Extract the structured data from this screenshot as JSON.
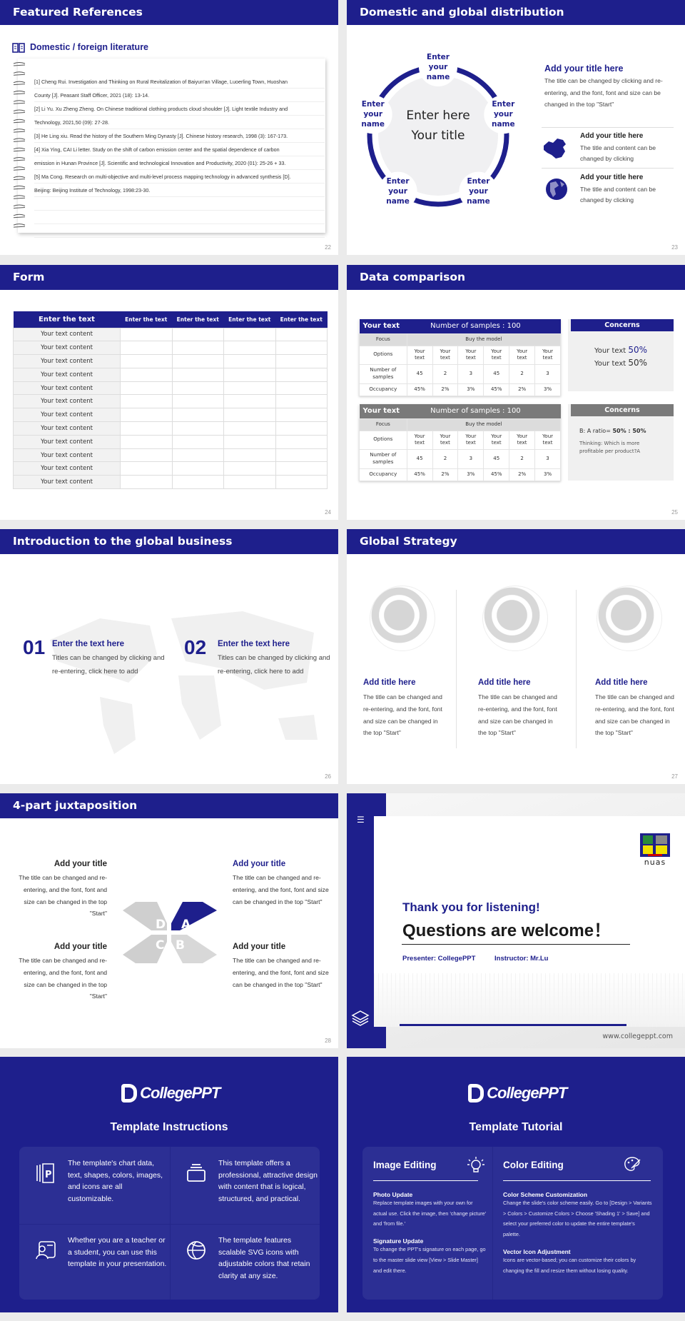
{
  "colors": {
    "primary": "#1e1f8c",
    "gray_header": "#7a7a7a",
    "background": "#ebebeb"
  },
  "slides": [
    {
      "number": "22",
      "title": "Featured References",
      "subtitle": "Domestic / foreign literature",
      "icon": "book-icon",
      "lines": [
        "[1] Cheng Rui. Investigation and Thinking on Rural Revitalization of Baiyun'an Village, Luoerling Town, Huoshan",
        "County [J]. Peasant Staff Officer, 2021 (18): 13-14.",
        "[2] Li Yu. Xu Zheng Zheng. On Chinese traditional clothing products cloud shoulder [J]. Light textile Industry and",
        "Technology, 2021,50 (09): 27-28.",
        "[3] He Ling xiu. Read the history of the Southern Ming Dynasty [J]. Chinese history research, 1998 (3): 167-173.",
        "[4] Xia Ying, CAI Li letter. Study on the shift of carbon emission center and the spatial dependence of carbon",
        "emission in Hunan Province [J]. Scientific and technological Innovation and Productivity, 2020 (01): 25-26 + 33.",
        "[5] Ma Cong. Research on multi-objective and multi-level process mapping technology in advanced synthesis [D].",
        "Beijing: Beijing Institute of Technology, 1998:23-30.",
        "",
        "",
        ""
      ]
    },
    {
      "number": "23",
      "title": "Domestic and global distribution",
      "center": [
        "Enter here",
        "Your title"
      ],
      "labels": [
        "Enter\nyour\nname",
        "Enter\nyour\nname",
        "Enter\nyour\nname",
        "Enter\nyour\nname",
        "Enter\nyour\nname"
      ],
      "main_title": "Add your title here",
      "main_body": "The title can be changed by clicking and re-entering, and the font, font and size can be changed in the top \"Start\"",
      "items": [
        {
          "icon": "china-map-icon",
          "title": "Add your title here",
          "body": "The title and content can be changed by clicking"
        },
        {
          "icon": "globe-icon",
          "title": "Add your title here",
          "body": "The title and content can be changed by clicking"
        }
      ]
    },
    {
      "number": "24",
      "title": "Form",
      "headers": [
        "Enter the text",
        "Enter the text",
        "Enter the text",
        "Enter the text",
        "Enter the text"
      ],
      "rows": [
        "Your text content",
        "Your text content",
        "Your text content",
        "Your text content",
        "Your text content",
        "Your text content",
        "Your text content",
        "Your text content",
        "Your text content",
        "Your text content",
        "Your text content",
        "Your text content"
      ]
    },
    {
      "number": "25",
      "title": "Data comparison",
      "tables": [
        {
          "label": "Your text",
          "samples": "Number of samples : 100",
          "focus": "Focus",
          "buy": "Buy the model",
          "row_labels": [
            "Options",
            "Number of samples",
            "Occupancy"
          ],
          "options": [
            "Your text",
            "Your text",
            "Your text",
            "Your text",
            "Your text",
            "Your text"
          ],
          "numbers": [
            "45",
            "2",
            "3",
            "45",
            "2",
            "3"
          ],
          "occupancy": [
            "45%",
            "2%",
            "3%",
            "45%",
            "2%",
            "3%"
          ]
        },
        {
          "label": "Your text",
          "samples": "Number of samples : 100",
          "focus": "Focus",
          "buy": "Buy the model",
          "row_labels": [
            "Options",
            "Number of samples",
            "Occupancy"
          ],
          "options": [
            "Your text",
            "Your text",
            "Your text",
            "Your text",
            "Your text",
            "Your text"
          ],
          "numbers": [
            "45",
            "2",
            "3",
            "45",
            "2",
            "3"
          ],
          "occupancy": [
            "45%",
            "2%",
            "3%",
            "45%",
            "2%",
            "3%"
          ]
        }
      ],
      "concerns": [
        {
          "title": "Concerns",
          "lines": [
            {
              "text": "Your text ",
              "value": "50%"
            },
            {
              "text": "Your text ",
              "value": "50%"
            }
          ]
        },
        {
          "title": "Concerns",
          "ratio_label": "B: A ratio= ",
          "ratio": "50% : 50%",
          "thinking": "Thinking: Which is more profitable per product?A"
        }
      ]
    },
    {
      "number": "26",
      "title": "Introduction to the global business",
      "items": [
        {
          "num": "01",
          "title": "Enter the text here",
          "body": "Titles can be changed by clicking and re-entering, click here to add"
        },
        {
          "num": "02",
          "title": "Enter the text here",
          "body": "Titles can be changed by clicking and re-entering, click here to add"
        }
      ]
    },
    {
      "number": "27",
      "title": "Global Strategy",
      "columns": [
        {
          "title": "Add title here",
          "body": "The title can be changed and re-entering, and the font, font and size can be changed in the top \"Start\""
        },
        {
          "title": "Add title here",
          "body": "The title can be changed and re-entering, and the font, font and size can be changed in the top \"Start\""
        },
        {
          "title": "Add title here",
          "body": "The title can be changed and re-entering, and the font, font and size can be changed in the top \"Start\""
        }
      ]
    },
    {
      "number": "28",
      "title": "4-part juxtaposition",
      "letters": [
        "A",
        "B",
        "C",
        "D"
      ],
      "blocks": [
        {
          "title": "Add your title",
          "body": "The title can be changed and re-entering, and the font, font and size can be changed in the top \"Start\""
        },
        {
          "title": "Add your title",
          "body": "The title can be changed and re-entering, and the font, font and size can be changed in the top \"Start\""
        },
        {
          "title": "Add your title",
          "body": "The title can be changed and re-entering, and the font, font and size can be changed in the top \"Start\""
        },
        {
          "title": "Add your title",
          "body": "The title can be changed and re-entering, and the font, font and size can be changed in the top \"Start\""
        }
      ]
    },
    {
      "logo_text": "nuas",
      "thanks": "Thank you for listening!",
      "questions": "Questions are welcome！",
      "presenter": "Presenter: CollegePPT",
      "instructor": "Instructor: Mr.Lu",
      "url": "www.collegeppt.com"
    },
    {
      "brand": "CollegePPT",
      "title": "Template Instructions",
      "cells": [
        {
          "icon": "presentation-file-icon",
          "text": "The template's chart data, text, shapes, colors, images, and icons are all customizable."
        },
        {
          "icon": "layers-box-icon",
          "text": "This template offers a professional, attractive design with content that is logical, structured, and practical."
        },
        {
          "icon": "teacher-icon",
          "text": "Whether you are a teacher or a student, you can use this template in your presentation."
        },
        {
          "icon": "basketball-icon",
          "text": "The template features scalable SVG icons with adjustable colors that retain clarity at any size."
        }
      ]
    },
    {
      "brand": "CollegePPT",
      "title": "Template Tutorial",
      "left": {
        "heading": "Image Editing",
        "icon": "lightbulb-icon",
        "sections": [
          {
            "title": "Photo Update",
            "body": "Replace template images with your own for actual use. Click the image, then 'change picture' and 'from file.'"
          },
          {
            "title": "Signature Update",
            "body": "To change the PPT's signature on each page, go to the master slide view [View > Slide Master] and edit there."
          }
        ]
      },
      "right": {
        "heading": "Color Editing",
        "icon": "palette-icon",
        "sections": [
          {
            "title": "Color Scheme Customization",
            "body": "Change the slide's color scheme easily. Go to [Design > Variants > Colors > Customize Colors > Choose 'Shading 1' > Save] and select your preferred color to update the entire template's palette."
          },
          {
            "title": "Vector Icon Adjustment",
            "body": "Icons are vector-based; you can customize their colors by changing the fill and resize them without losing quality."
          }
        ]
      }
    }
  ]
}
